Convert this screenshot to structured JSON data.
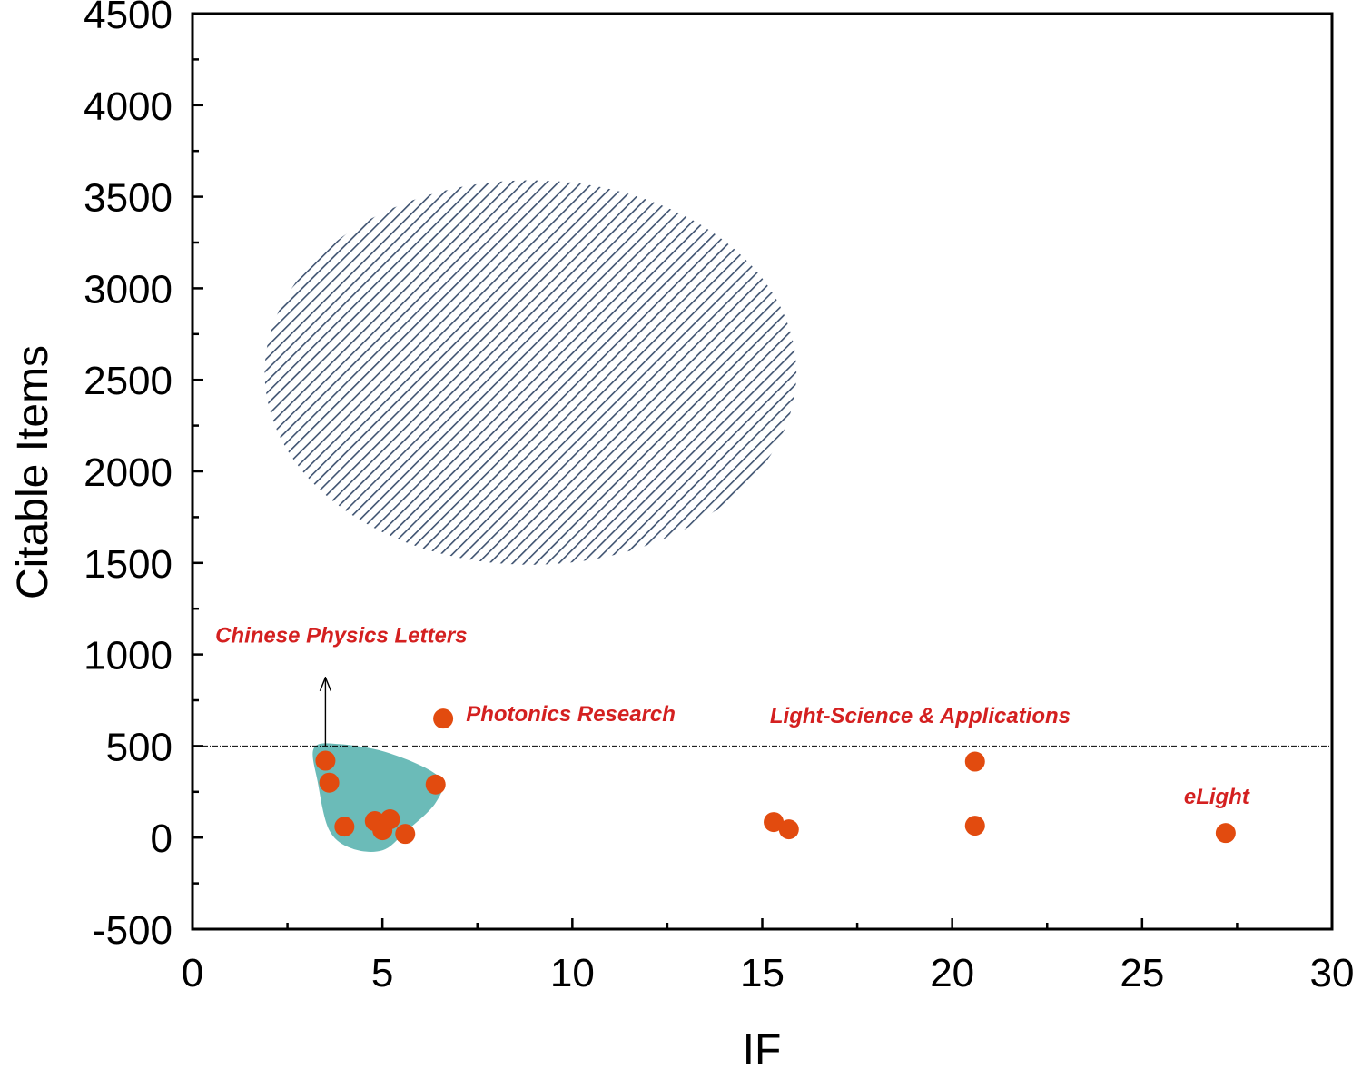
{
  "chart_data": {
    "type": "scatter",
    "xlabel": "IF",
    "ylabel": "Citable Items",
    "xlim": [
      0,
      30
    ],
    "ylim": [
      -500,
      4500
    ],
    "x_ticks": [
      "0",
      "5",
      "10",
      "15",
      "20",
      "25",
      "30"
    ],
    "y_ticks": [
      "-500",
      "0",
      "500",
      "1000",
      "1500",
      "2000",
      "2500",
      "3000",
      "3500",
      "4000",
      "4500"
    ],
    "grid": false,
    "reference_line": {
      "y": 500,
      "style": "dash-dot"
    },
    "points": [
      {
        "x": 3.5,
        "y": 420
      },
      {
        "x": 3.6,
        "y": 300
      },
      {
        "x": 4.0,
        "y": 60
      },
      {
        "x": 4.8,
        "y": 90
      },
      {
        "x": 5.0,
        "y": 40
      },
      {
        "x": 5.2,
        "y": 100
      },
      {
        "x": 5.6,
        "y": 20
      },
      {
        "x": 6.4,
        "y": 290
      },
      {
        "x": 6.6,
        "y": 650
      },
      {
        "x": 15.3,
        "y": 85
      },
      {
        "x": 15.7,
        "y": 45
      },
      {
        "x": 20.6,
        "y": 415
      },
      {
        "x": 20.6,
        "y": 65
      },
      {
        "x": 27.2,
        "y": 25
      }
    ],
    "regions": [
      {
        "kind": "hatched-ellipse",
        "center": [
          8.9,
          2540
        ],
        "semi_axes": [
          7.0,
          1050
        ],
        "rotation_deg": 0,
        "color": "#3e5270"
      },
      {
        "kind": "filled-blob",
        "color": "#6bbbb8",
        "outline": [
          [
            3.2,
            490
          ],
          [
            3.9,
            510
          ],
          [
            5.2,
            460
          ],
          [
            6.5,
            330
          ],
          [
            6.4,
            190
          ],
          [
            5.6,
            30
          ],
          [
            5.0,
            -70
          ],
          [
            4.2,
            -60
          ],
          [
            3.6,
            40
          ],
          [
            3.3,
            300
          ]
        ]
      }
    ],
    "annotations": [
      {
        "text": "Chinese Physics Letters",
        "x": 0.6,
        "y": 1065
      },
      {
        "text": "Photonics Research",
        "x": 7.2,
        "y": 635
      },
      {
        "text": "Light-Science & Applications",
        "x": 15.2,
        "y": 625
      },
      {
        "text": "eLight",
        "x": 26.1,
        "y": 185
      }
    ],
    "arrow": {
      "from": [
        3.5,
        500
      ],
      "to": [
        3.5,
        870
      ]
    },
    "colors": {
      "points": "#e24b0f",
      "annotations": "#d42020"
    }
  }
}
